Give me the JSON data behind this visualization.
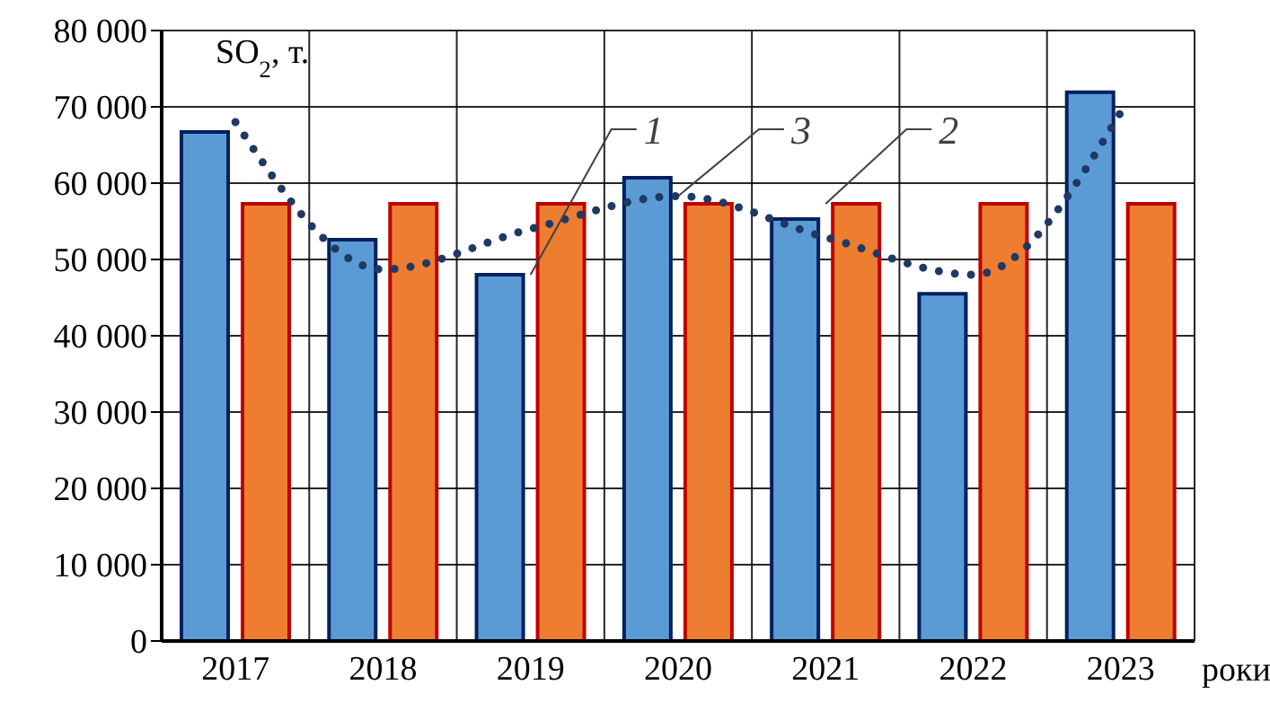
{
  "chart_data": {
    "type": "bar",
    "ylabel": "SO$_{2}$, т.",
    "xlabel": "роки",
    "categories": [
      "2017",
      "2018",
      "2019",
      "2020",
      "2021",
      "2022",
      "2023"
    ],
    "series": [
      {
        "color": "#5b9bd5",
        "values": [
          66700,
          52600,
          48000,
          60700,
          55300,
          45500,
          71900
        ]
      },
      {
        "color": "#ed7d31",
        "values": [
          57300,
          57300,
          57300,
          57300,
          57300,
          57300,
          57300
        ]
      },
      {
        "type": "line",
        "color": "#203864",
        "line_style": "dotted",
        "marker": "none",
        "values": [
          68000,
          48700,
          54000,
          58300,
          52900,
          48000,
          69300
        ]
      }
    ],
    "ylim": [
      0,
      80000
    ],
    "yticks": [
      0,
      {
        "value": 10000,
        "label": "10 000"
      },
      {
        "value": 20000,
        "label": "20 000"
      },
      {
        "value": 30000,
        "label": "30 000"
      },
      {
        "value": 40000,
        "label": "40 000"
      },
      {
        "value": 50000,
        "label": "50 000"
      },
      {
        "value": 60000,
        "label": "60 000"
      },
      {
        "value": 70000,
        "label": "70 000"
      },
      {
        "value": 80000,
        "label": "80 000"
      }
    ],
    "grid": true,
    "legend": false,
    "annotations": [
      {
        "text": "1",
        "x": "2019",
        "y": 48000
      },
      {
        "text": "3",
        "x": "2020",
        "y": 58300
      },
      {
        "text": "2",
        "x": "2021",
        "y": 57300
      }
    ]
  }
}
